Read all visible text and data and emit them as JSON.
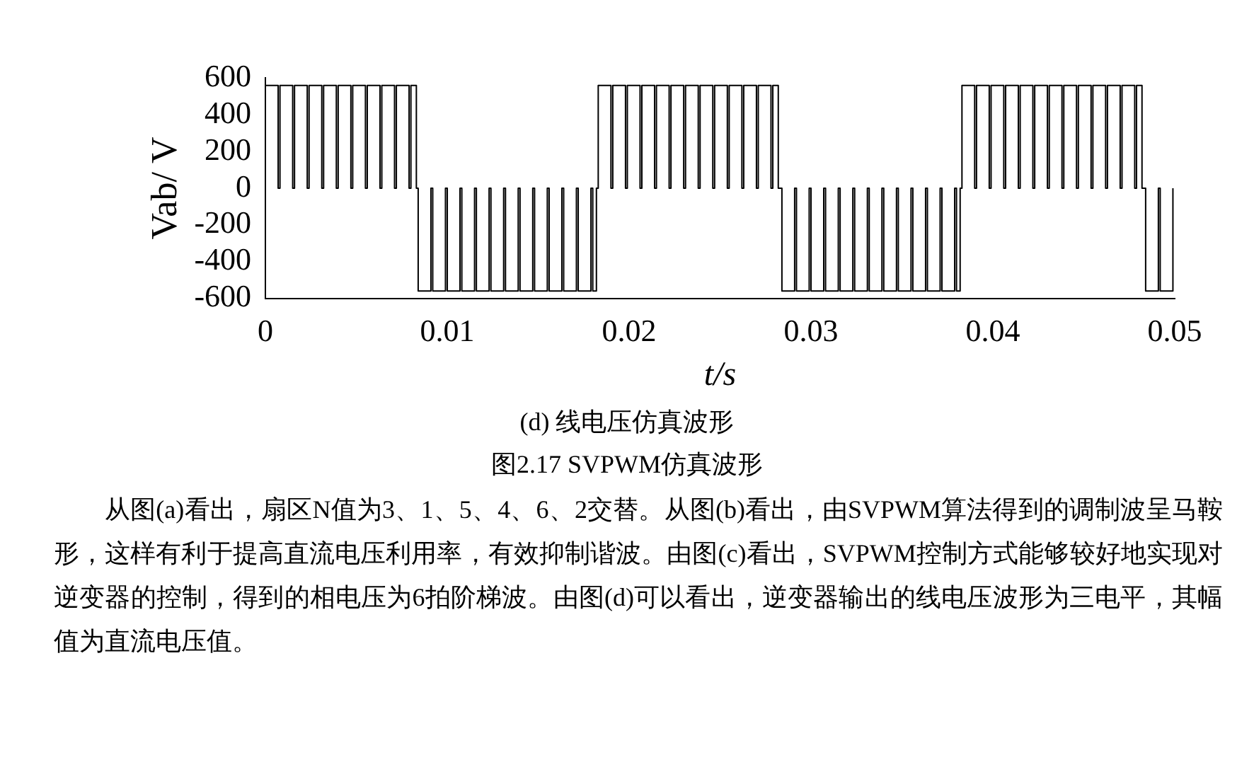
{
  "chart_data": {
    "type": "step",
    "xlabel": "t/s",
    "ylabel": "Vab/ V",
    "xlim": [
      0,
      0.05
    ],
    "xticks": [
      0,
      0.01,
      0.02,
      0.03,
      0.04,
      0.05
    ],
    "ylim": [
      -600,
      600
    ],
    "yticks": [
      -600,
      -400,
      -200,
      0,
      200,
      400,
      600
    ],
    "grid": false,
    "legend": false,
    "marker": "none",
    "line_style": "solid",
    "annotations": [
      "(d)  线电压仿真波形",
      "图2.17 SVPWM仿真波形",
      "从图(a)看出，扇区N值为3、1、5、4、6、2交替。从图(b)看出，由SVPWM算法得到的调制波呈马鞍形，这样有利于提高直流电压利用率，有效抑制谐波。由图(c)看出，SVPWM控制方式能够较好地实现对逆变器的控制，得到的相电压为6拍阶梯波。由图(d)可以看出，逆变器输出的线电压波形为三电平，其幅值为直流电压值。"
    ],
    "series": [
      {
        "color": "#000000",
        "x": [
          0,
          0.0007,
          0.0008,
          0.0015,
          0.0016,
          0.0023,
          0.0024,
          0.0031,
          0.0032,
          0.0039,
          0.004,
          0.0047,
          0.0048,
          0.0055,
          0.0056,
          0.0063,
          0.0064,
          0.0071,
          0.0072,
          0.0079,
          0.008,
          0.0083,
          0.0084,
          0.0091,
          0.0092,
          0.0099,
          0.01,
          0.0107,
          0.0108,
          0.0115,
          0.0116,
          0.0123,
          0.0124,
          0.0131,
          0.0132,
          0.0139,
          0.014,
          0.0147,
          0.0148,
          0.0155,
          0.0156,
          0.0163,
          0.0164,
          0.0171,
          0.0172,
          0.0179,
          0.018,
          0.0182,
          0.0183,
          0.019,
          0.0191,
          0.0198,
          0.0199,
          0.0206,
          0.0207,
          0.0214,
          0.0215,
          0.0222,
          0.0223,
          0.023,
          0.0231,
          0.0238,
          0.0239,
          0.0246,
          0.0247,
          0.0254,
          0.0255,
          0.0262,
          0.0263,
          0.027,
          0.0271,
          0.0278,
          0.0279,
          0.0282,
          0.0284,
          0.0291,
          0.0292,
          0.0299,
          0.03,
          0.0307,
          0.0308,
          0.0315,
          0.0316,
          0.0323,
          0.0324,
          0.0331,
          0.0332,
          0.0339,
          0.034,
          0.0347,
          0.0348,
          0.0355,
          0.0356,
          0.0363,
          0.0364,
          0.0371,
          0.0372,
          0.0379,
          0.038,
          0.0382,
          0.0383,
          0.039,
          0.0391,
          0.0398,
          0.0399,
          0.0406,
          0.0407,
          0.0414,
          0.0415,
          0.0422,
          0.0423,
          0.043,
          0.0431,
          0.0438,
          0.0439,
          0.0446,
          0.0447,
          0.0454,
          0.0455,
          0.0462,
          0.0463,
          0.047,
          0.0471,
          0.0478,
          0.0479,
          0.0482,
          0.0484,
          0.0491,
          0.0492,
          0.0499
        ],
        "values": [
          560,
          0,
          560,
          0,
          560,
          0,
          560,
          0,
          560,
          0,
          560,
          0,
          560,
          0,
          560,
          0,
          560,
          0,
          560,
          0,
          560,
          0,
          -560,
          0,
          -560,
          0,
          -560,
          0,
          -560,
          0,
          -560,
          0,
          -560,
          0,
          -560,
          0,
          -560,
          0,
          -560,
          0,
          -560,
          0,
          -560,
          0,
          -560,
          0,
          -560,
          0,
          560,
          0,
          560,
          0,
          560,
          0,
          560,
          0,
          560,
          0,
          560,
          0,
          560,
          0,
          560,
          0,
          560,
          0,
          560,
          0,
          560,
          0,
          560,
          0,
          560,
          0,
          -560,
          0,
          -560,
          0,
          -560,
          0,
          -560,
          0,
          -560,
          0,
          -560,
          0,
          -560,
          0,
          -560,
          0,
          -560,
          0,
          -560,
          0,
          -560,
          0,
          -560,
          0,
          -560,
          0,
          560,
          0,
          560,
          0,
          560,
          0,
          560,
          0,
          560,
          0,
          560,
          0,
          560,
          0,
          560,
          0,
          560,
          0,
          560,
          0,
          560,
          0,
          560,
          0,
          560,
          0,
          -560,
          0,
          -560,
          0
        ]
      }
    ]
  }
}
